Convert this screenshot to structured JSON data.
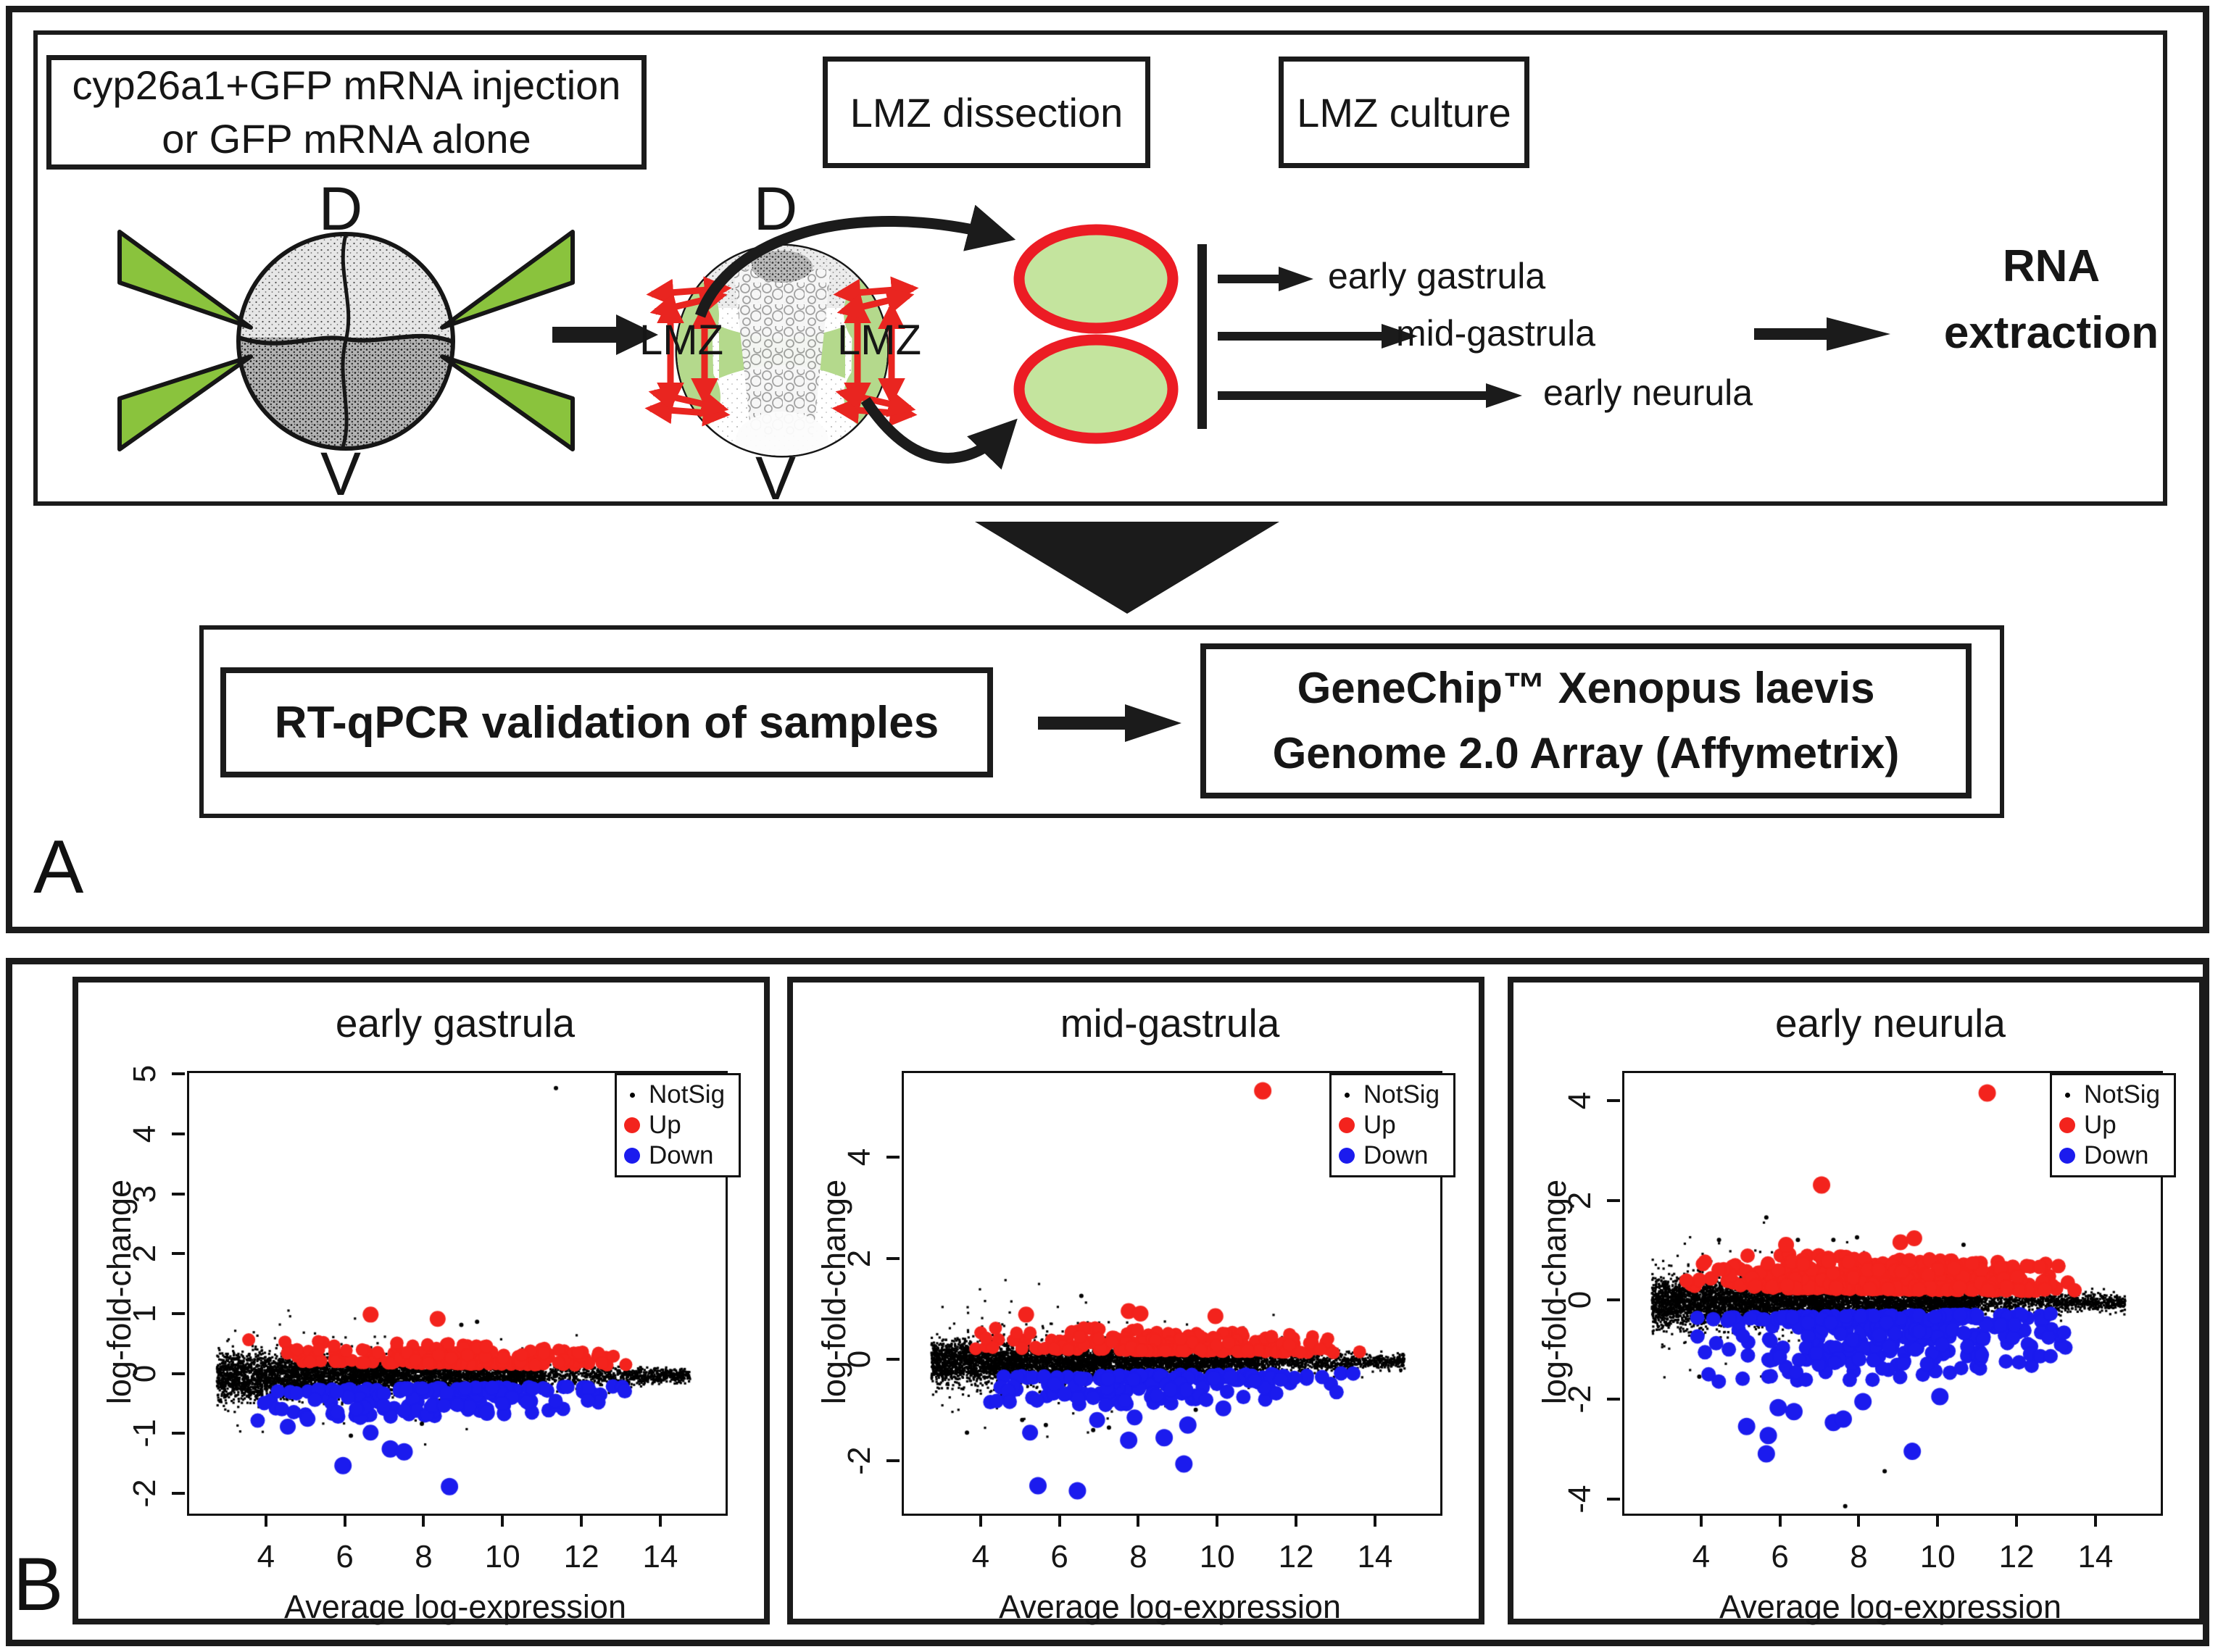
{
  "panelA": {
    "label": "A",
    "injection_box": {
      "line1": "cyp26a1+GFP mRNA injection",
      "line2": "or GFP mRNA alone"
    },
    "dissection_box": "LMZ dissection",
    "culture_box": "LMZ culture",
    "embryo1": {
      "dorsal": "D",
      "ventral": "V"
    },
    "embryo2": {
      "dorsal": "D",
      "ventral": "V",
      "lmz_left": "LMZ",
      "lmz_right": "LMZ"
    },
    "timepoints": [
      "early gastrula",
      "mid-gastrula",
      "early neurula"
    ],
    "rna": {
      "line1": "RNA",
      "line2": "extraction"
    },
    "rtqpcr_box": "RT-qPCR validation of samples",
    "genechip_box": {
      "line1": "GeneChip™ Xenopus laevis",
      "line2": "Genome 2.0 Array (Affymetrix)"
    },
    "colors": {
      "needle_green": "#8ac33d",
      "zone_green": "#b4d98c",
      "explant_fill": "#c4e49e",
      "explant_stroke": "#ec1c24",
      "arrow_red": "#e92520",
      "ink": "#1b1b1b"
    }
  },
  "panelB": {
    "label": "B"
  },
  "chart_data": {
    "type": "scatter",
    "colors": {
      "notsig": "#000000",
      "up": "#f3231d",
      "down": "#1b1bee"
    },
    "plots": [
      {
        "title": "early gastrula",
        "xlabel": "Average log-expression",
        "ylabel": "log-fold-change",
        "xlim": [
          2.0,
          15.6
        ],
        "ylim": [
          -2.3,
          5.05
        ],
        "xticks": [
          4,
          6,
          8,
          10,
          12,
          14
        ],
        "yticks": [
          -2,
          -1,
          0,
          1,
          2,
          3,
          4,
          5
        ],
        "legend": [
          {
            "label": "NotSig",
            "color": "#000000",
            "size": "small"
          },
          {
            "label": "Up",
            "color": "#f3231d"
          },
          {
            "label": "Down",
            "color": "#1b1bee"
          }
        ],
        "populations": {
          "notsig": {
            "n": 6200,
            "sd0": 0.17,
            "tail_p": 0.03,
            "tail_mult": 2.6
          },
          "up": {
            "n": 200,
            "y0": 0.24,
            "spread": 0.42,
            "pow": 2,
            "decay": 0.35,
            "r": 9
          },
          "down": {
            "n": 165,
            "y0": 0.24,
            "spread": 0.55,
            "pow": 2,
            "decay": 0.3,
            "r": 10
          }
        },
        "outliers": [
          {
            "series": "NotSig",
            "x": 11.3,
            "y": 4.8,
            "r": 3
          },
          {
            "series": "NotSig",
            "x": 8.9,
            "y": 0.85,
            "r": 3
          },
          {
            "series": "NotSig",
            "x": 9.3,
            "y": 0.9,
            "r": 3
          },
          {
            "series": "NotSig",
            "x": 6.1,
            "y": -1.0,
            "r": 3
          },
          {
            "series": "NotSig",
            "x": 7.9,
            "y": -0.8,
            "r": 3
          },
          {
            "series": "Up",
            "x": 6.6,
            "y": 1.02,
            "r": 11
          },
          {
            "series": "Up",
            "x": 8.3,
            "y": 0.95,
            "r": 11
          },
          {
            "series": "Down",
            "x": 5.9,
            "y": -1.5,
            "r": 12
          },
          {
            "series": "Down",
            "x": 7.1,
            "y": -1.22,
            "r": 12
          },
          {
            "series": "Down",
            "x": 7.45,
            "y": -1.27,
            "r": 12
          },
          {
            "series": "Down",
            "x": 8.6,
            "y": -1.85,
            "r": 12
          },
          {
            "series": "Down",
            "x": 4.5,
            "y": -0.85,
            "r": 11
          },
          {
            "series": "Down",
            "x": 5.0,
            "y": -0.72,
            "r": 11
          },
          {
            "series": "Down",
            "x": 6.6,
            "y": -0.95,
            "r": 11
          },
          {
            "series": "Down",
            "x": 9.55,
            "y": -0.62,
            "r": 11
          }
        ]
      },
      {
        "title": "mid-gastrula",
        "xlabel": "Average log-expression",
        "ylabel": "log-fold-change",
        "xlim": [
          2.0,
          15.6
        ],
        "ylim": [
          -3.0,
          5.7
        ],
        "xticks": [
          4,
          6,
          8,
          10,
          12,
          14
        ],
        "yticks": [
          -2,
          0,
          2,
          4
        ],
        "legend": [
          {
            "label": "NotSig",
            "color": "#000000",
            "size": "small"
          },
          {
            "label": "Up",
            "color": "#f3231d"
          },
          {
            "label": "Down",
            "color": "#1b1bee"
          }
        ],
        "populations": {
          "notsig": {
            "n": 6800,
            "sd0": 0.19,
            "tail_p": 0.05,
            "tail_mult": 2.8
          },
          "up": {
            "n": 230,
            "y0": 0.26,
            "spread": 0.5,
            "pow": 2,
            "decay": 0.35,
            "r": 9
          },
          "down": {
            "n": 170,
            "y0": 0.3,
            "spread": 0.65,
            "pow": 2,
            "decay": 0.25,
            "r": 10
          }
        },
        "outliers": [
          {
            "series": "NotSig",
            "x": 6.5,
            "y": 1.3,
            "r": 3
          },
          {
            "series": "NotSig",
            "x": 3.6,
            "y": -1.4,
            "r": 3
          },
          {
            "series": "NotSig",
            "x": 5.0,
            "y": -1.15,
            "r": 3
          },
          {
            "series": "NotSig",
            "x": 5.6,
            "y": -1.25,
            "r": 3
          },
          {
            "series": "NotSig",
            "x": 6.8,
            "y": -1.35,
            "r": 3
          },
          {
            "series": "NotSig",
            "x": 7.2,
            "y": -1.3,
            "r": 3
          },
          {
            "series": "NotSig",
            "x": 9.4,
            "y": -0.95,
            "r": 3
          },
          {
            "series": "Up",
            "x": 11.1,
            "y": 5.35,
            "r": 12
          },
          {
            "series": "Up",
            "x": 7.7,
            "y": 1.0,
            "r": 11
          },
          {
            "series": "Up",
            "x": 8.0,
            "y": 0.95,
            "r": 11
          },
          {
            "series": "Up",
            "x": 5.1,
            "y": 0.93,
            "r": 11
          },
          {
            "series": "Up",
            "x": 9.9,
            "y": 0.9,
            "r": 11
          },
          {
            "series": "Down",
            "x": 5.4,
            "y": -2.45,
            "r": 12
          },
          {
            "series": "Down",
            "x": 6.4,
            "y": -2.55,
            "r": 12
          },
          {
            "series": "Down",
            "x": 9.1,
            "y": -2.02,
            "r": 12
          },
          {
            "series": "Down",
            "x": 9.2,
            "y": -1.25,
            "r": 12
          },
          {
            "series": "Down",
            "x": 7.7,
            "y": -1.55,
            "r": 12
          },
          {
            "series": "Down",
            "x": 8.6,
            "y": -1.5,
            "r": 12
          },
          {
            "series": "Down",
            "x": 5.2,
            "y": -1.4,
            "r": 11
          },
          {
            "series": "Down",
            "x": 6.9,
            "y": -1.15,
            "r": 11
          },
          {
            "series": "Down",
            "x": 7.85,
            "y": -1.1,
            "r": 11
          },
          {
            "series": "Down",
            "x": 10.1,
            "y": -0.92,
            "r": 11
          }
        ]
      },
      {
        "title": "early neurula",
        "xlabel": "Average log-expression",
        "ylabel": "log-fold-change",
        "xlim": [
          2.0,
          15.6
        ],
        "ylim": [
          -4.25,
          4.6
        ],
        "xticks": [
          4,
          6,
          8,
          10,
          12,
          14
        ],
        "yticks": [
          -4,
          -2,
          0,
          2,
          4
        ],
        "legend": [
          {
            "label": "NotSig",
            "color": "#000000",
            "size": "small"
          },
          {
            "label": "Up",
            "color": "#f3231d"
          },
          {
            "label": "Down",
            "color": "#1b1bee"
          }
        ],
        "populations": {
          "notsig": {
            "n": 7200,
            "sd0": 0.22,
            "tail_p": 0.05,
            "tail_mult": 2.5
          },
          "up": {
            "n": 430,
            "y0": 0.3,
            "spread": 0.75,
            "pow": 2,
            "decay": 0.3,
            "r": 10
          },
          "down": {
            "n": 340,
            "y0": 0.32,
            "spread": 1.5,
            "pow": 2.4,
            "decay": 0.3,
            "r": 10
          }
        },
        "outliers": [
          {
            "series": "NotSig",
            "x": 5.6,
            "y": 1.7,
            "r": 3
          },
          {
            "series": "NotSig",
            "x": 4.4,
            "y": 1.25,
            "r": 3
          },
          {
            "series": "NotSig",
            "x": 6.4,
            "y": 1.25,
            "r": 3
          },
          {
            "series": "NotSig",
            "x": 7.3,
            "y": 1.25,
            "r": 3
          },
          {
            "series": "NotSig",
            "x": 7.9,
            "y": 1.3,
            "r": 3
          },
          {
            "series": "NotSig",
            "x": 10.6,
            "y": 1.15,
            "r": 3
          },
          {
            "series": "NotSig",
            "x": 7.6,
            "y": -4.1,
            "r": 3
          },
          {
            "series": "NotSig",
            "x": 8.6,
            "y": -3.4,
            "r": 3
          },
          {
            "series": "NotSig",
            "x": 3.9,
            "y": -1.5,
            "r": 3
          },
          {
            "series": "Up",
            "x": 11.2,
            "y": 4.2,
            "r": 12
          },
          {
            "series": "Up",
            "x": 7.0,
            "y": 2.35,
            "r": 12
          },
          {
            "series": "Up",
            "x": 9.0,
            "y": 1.2,
            "r": 11
          },
          {
            "series": "Up",
            "x": 9.35,
            "y": 1.28,
            "r": 11
          },
          {
            "series": "Up",
            "x": 6.1,
            "y": 1.15,
            "r": 11
          },
          {
            "series": "Down",
            "x": 5.6,
            "y": -3.05,
            "r": 12
          },
          {
            "series": "Down",
            "x": 9.3,
            "y": -3.0,
            "r": 12
          },
          {
            "series": "Down",
            "x": 5.1,
            "y": -2.5,
            "r": 12
          },
          {
            "series": "Down",
            "x": 5.65,
            "y": -2.68,
            "r": 12
          },
          {
            "series": "Down",
            "x": 7.3,
            "y": -2.42,
            "r": 12
          },
          {
            "series": "Down",
            "x": 7.55,
            "y": -2.35,
            "r": 12
          },
          {
            "series": "Down",
            "x": 6.3,
            "y": -2.2,
            "r": 12
          },
          {
            "series": "Down",
            "x": 5.9,
            "y": -2.12,
            "r": 12
          },
          {
            "series": "Down",
            "x": 10.0,
            "y": -1.9,
            "r": 12
          },
          {
            "series": "Down",
            "x": 8.05,
            "y": -2.0,
            "r": 12
          }
        ]
      }
    ]
  }
}
